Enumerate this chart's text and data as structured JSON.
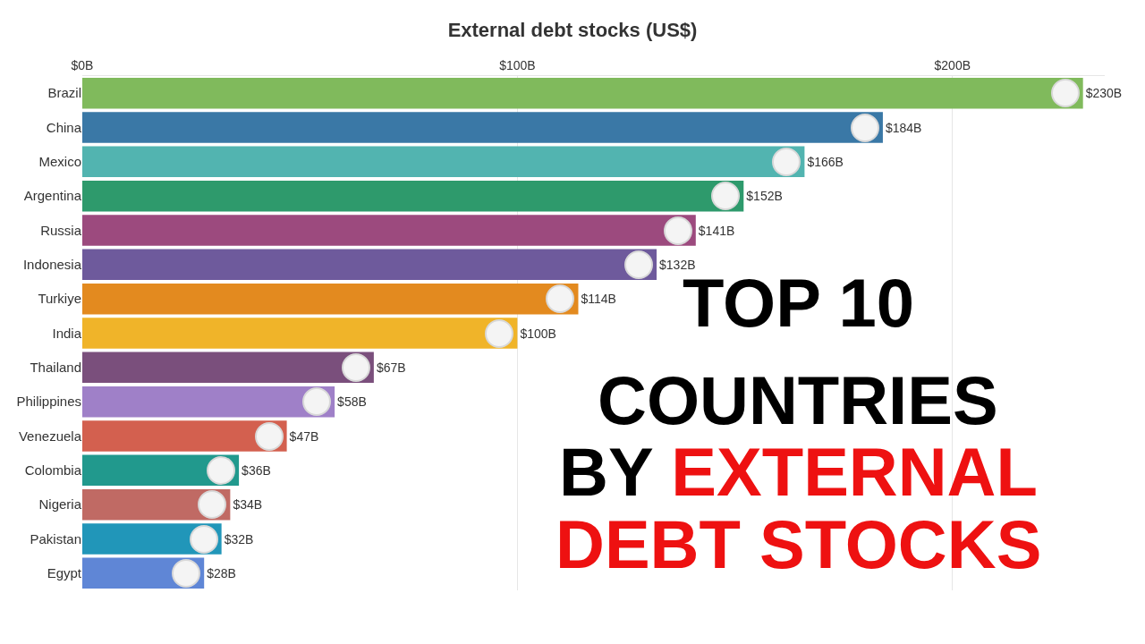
{
  "chart_data": {
    "type": "bar",
    "orientation": "horizontal",
    "title": "External debt stocks (US$)",
    "categories": [
      "Brazil",
      "China",
      "Mexico",
      "Argentina",
      "Russia",
      "Indonesia",
      "Turkiye",
      "India",
      "Thailand",
      "Philippines",
      "Venezuela",
      "Colombia",
      "Nigeria",
      "Pakistan",
      "Egypt"
    ],
    "values": [
      230,
      184,
      166,
      152,
      141,
      132,
      114,
      100,
      67,
      58,
      47,
      36,
      34,
      32,
      28
    ],
    "value_labels": [
      "$230B",
      "$184B",
      "$166B",
      "$152B",
      "$141B",
      "$132B",
      "$114B",
      "$100B",
      "$67B",
      "$58B",
      "$47B",
      "$36B",
      "$34B",
      "$32B",
      "$28B"
    ],
    "colors": [
      "#80ba5c",
      "#3a78a6",
      "#52b4b0",
      "#2e9a6c",
      "#9c4a7e",
      "#6e5a9c",
      "#e38a1f",
      "#f0b429",
      "#7a4f7c",
      "#9f80c8",
      "#d3604f",
      "#21998d",
      "#c06a64",
      "#2196b9",
      "#5f86d6"
    ],
    "xlim": [
      0,
      235
    ],
    "xticks": [
      {
        "value": 0,
        "label": "$0B"
      },
      {
        "value": 100,
        "label": "$100B"
      },
      {
        "value": 200,
        "label": "$200B"
      }
    ],
    "grid": "x",
    "annotations": [
      "TOP 10",
      "COUNTRIES",
      "BY",
      "EXTERNAL",
      "DEBT STOCKS"
    ]
  }
}
